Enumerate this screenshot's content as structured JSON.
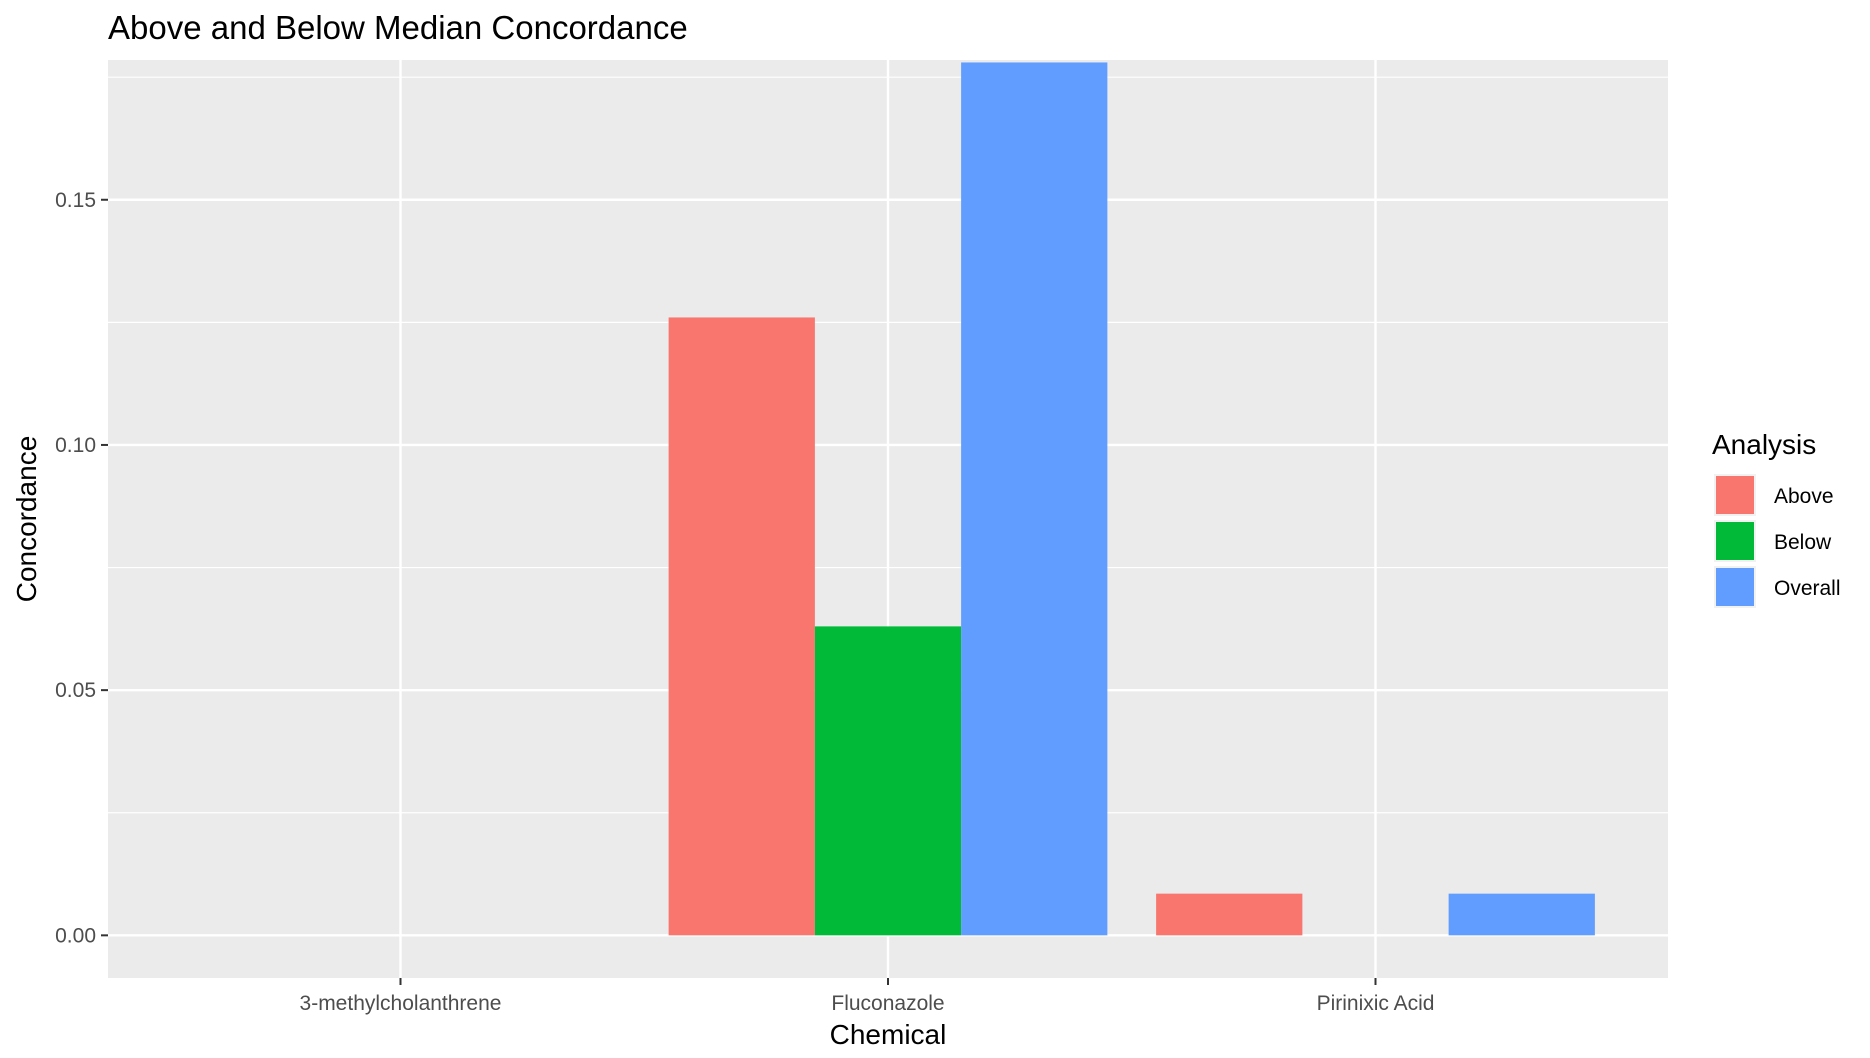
{
  "chart_data": {
    "type": "bar",
    "title": "Above and Below Median Concordance",
    "xlabel": "Chemical",
    "ylabel": "Concordance",
    "categories": [
      "3-methylcholanthrene",
      "Fluconazole",
      "Pirinixic Acid"
    ],
    "series": [
      {
        "name": "Above",
        "color": "#F8766D",
        "values": [
          0,
          0.126,
          0.0085
        ]
      },
      {
        "name": "Below",
        "color": "#00BA38",
        "values": [
          0,
          0.063,
          0
        ]
      },
      {
        "name": "Overall",
        "color": "#619CFF",
        "values": [
          0,
          0.178,
          0.0085
        ]
      }
    ],
    "ylim": [
      -0.0087,
      0.1785
    ],
    "yticks": [
      0.0,
      0.05,
      0.1,
      0.15
    ],
    "ytick_labels": [
      "0.00",
      "0.05",
      "0.10",
      "0.15"
    ],
    "grid": true,
    "legend": {
      "title": "Analysis",
      "placement": "right"
    },
    "panel_background": "#EBEBEB",
    "grid_color": "#FFFFFF"
  }
}
